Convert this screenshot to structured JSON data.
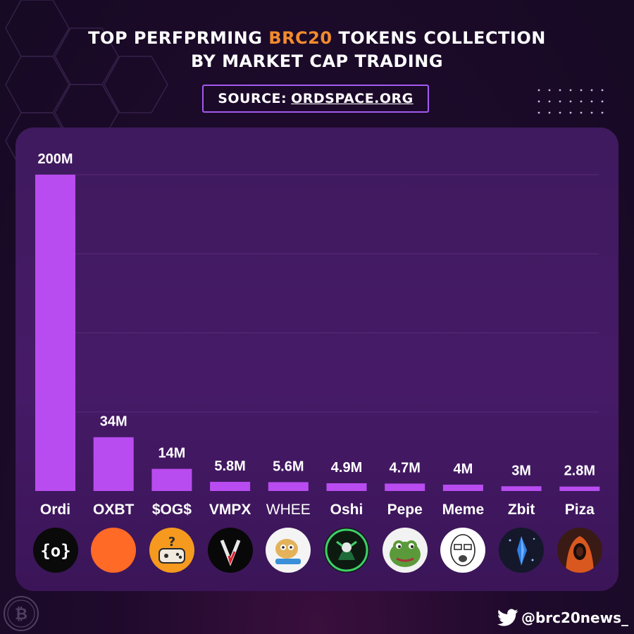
{
  "header": {
    "title_line1_prefix": "TOP PERFPRMING ",
    "title_line1_accent": "BRC20",
    "title_line1_suffix": " TOKENS COLLECTION",
    "title_line2": "BY MARKET CAP TRADING",
    "source_label": "SOURCE:",
    "source_link": "ORDSPACE.ORG"
  },
  "colors": {
    "bar": "#b94cf0",
    "accent": "#f28a2e",
    "panel": "#441a64",
    "grid": "#5a2a7a"
  },
  "chart_data": {
    "type": "bar",
    "title": "TOP PERFPRMING BRC20 TOKENS COLLECTION BY MARKET CAP TRADING",
    "categories": [
      "Ordi",
      "OXBT",
      "$OG$",
      "VMPX",
      "WHEE",
      "Oshi",
      "Pepe",
      "Meme",
      "Zbit",
      "Piza"
    ],
    "values": [
      200,
      34,
      14,
      5.8,
      5.6,
      4.9,
      4.7,
      4,
      3,
      2.8
    ],
    "unit": "M",
    "value_labels": [
      "200M",
      "34M",
      "14M",
      "5.8M",
      "5.6M",
      "4.9M",
      "4.7M",
      "4M",
      "3M",
      "2.8M"
    ],
    "grid": true,
    "grid_lines": 4,
    "xlabel": "",
    "ylabel": ""
  },
  "token_icons": [
    "ordi-logo-icon",
    "oxbt-orange-circle-icon",
    "og-gamepad-icon",
    "vmpx-v-logo-icon",
    "whee-dog-icon",
    "oshi-warrior-icon",
    "pepe-frog-icon",
    "meme-wojak-icon",
    "zbit-crystal-icon",
    "piza-hooded-figure-icon"
  ],
  "footer": {
    "handle": "@brc20news_"
  }
}
